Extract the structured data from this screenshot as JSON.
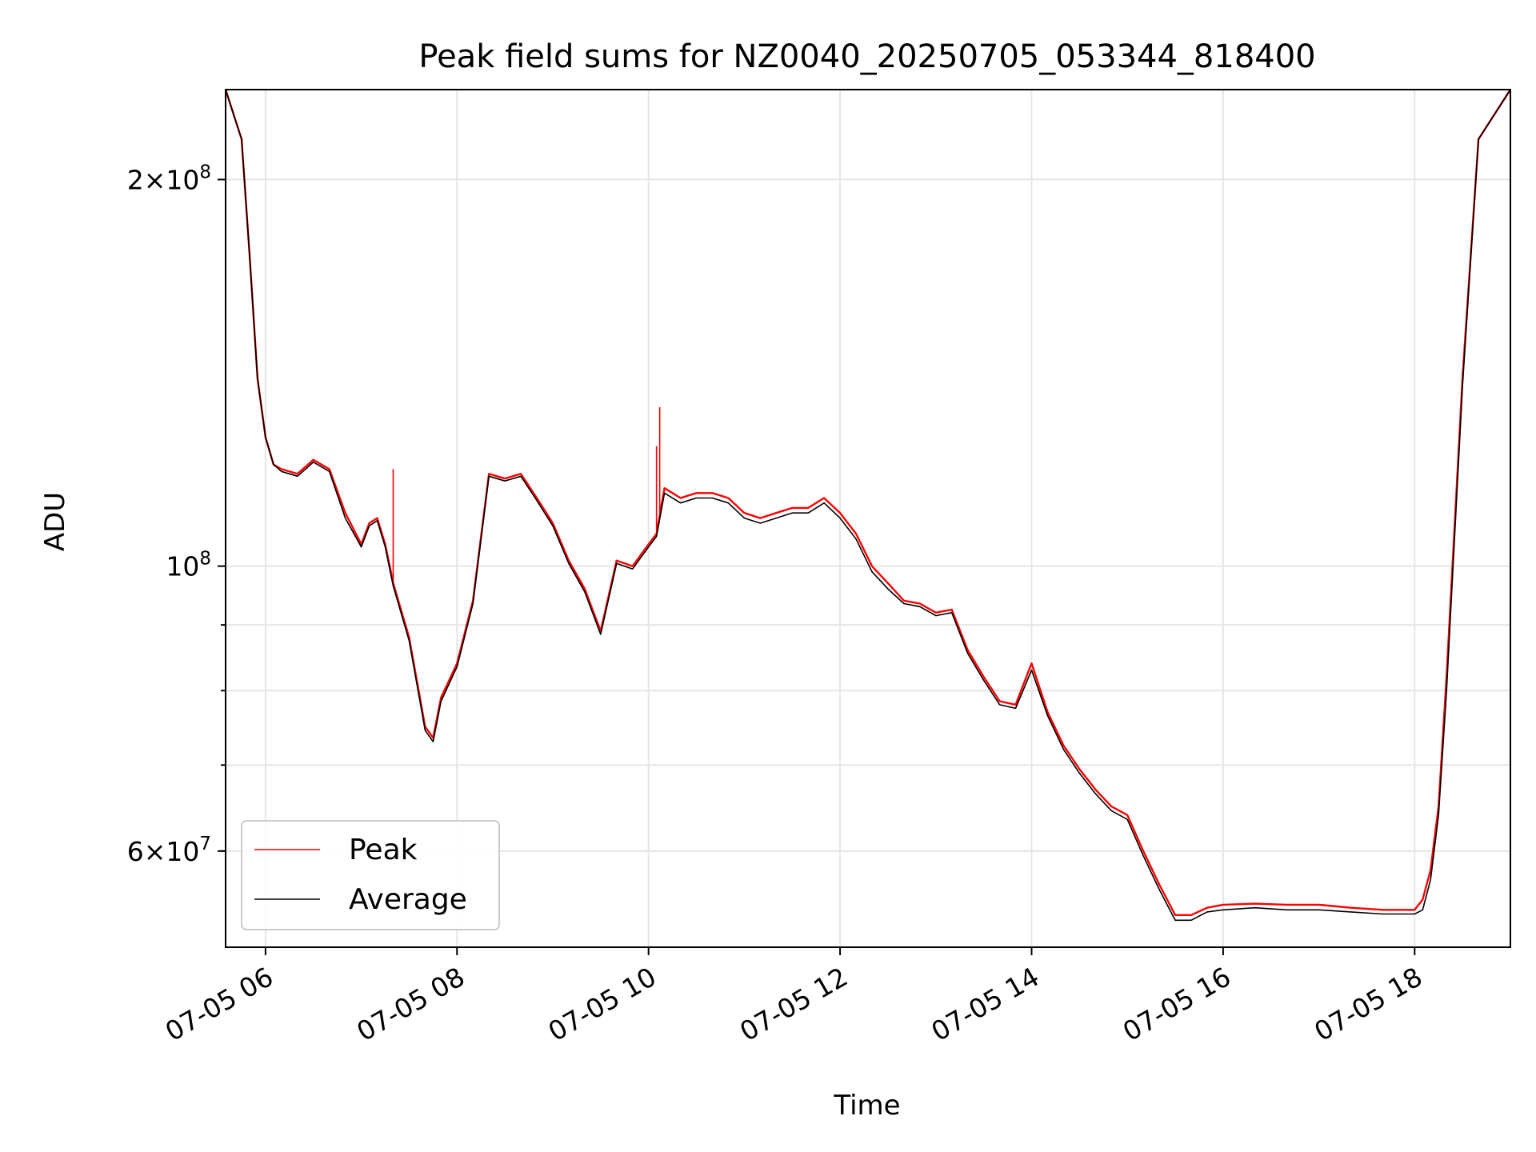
{
  "chart_data": {
    "type": "line",
    "title": "Peak field sums for NZ0040_20250705_053344_818400",
    "xlabel": "Time",
    "ylabel": "ADU",
    "yscale": "log",
    "grid": true,
    "legend_position": "lower-left",
    "xlim": [
      "07-05 05:35",
      "07-05 19:00"
    ],
    "ylim": [
      50500000,
      235000000
    ],
    "x_ticks": [
      {
        "value": "07-05 06:00",
        "label": "07-05 06"
      },
      {
        "value": "07-05 08:00",
        "label": "07-05 08"
      },
      {
        "value": "07-05 10:00",
        "label": "07-05 10"
      },
      {
        "value": "07-05 12:00",
        "label": "07-05 12"
      },
      {
        "value": "07-05 14:00",
        "label": "07-05 14"
      },
      {
        "value": "07-05 16:00",
        "label": "07-05 16"
      },
      {
        "value": "07-05 18:00",
        "label": "07-05 18"
      }
    ],
    "y_major_ticks": [
      {
        "value": 200000000,
        "base": "2×10",
        "exp": "8"
      },
      {
        "value": 100000000,
        "base": "10",
        "exp": "8"
      },
      {
        "value": 60000000,
        "base": "6×10",
        "exp": "7"
      }
    ],
    "y_minor_ticks": [
      60000000,
      70000000,
      80000000,
      90000000,
      300000000
    ],
    "series": [
      {
        "name": "Peak",
        "color": "#ff0000",
        "x": [
          "05:35",
          "05:45",
          "05:50",
          "05:55",
          "06:00",
          "06:05",
          "06:10",
          "06:20",
          "06:30",
          "06:40",
          "06:50",
          "07:00",
          "07:05",
          "07:10",
          "07:15",
          "07:20",
          "07:30",
          "07:40",
          "07:45",
          "07:50",
          "08:00",
          "08:10",
          "08:20",
          "08:30",
          "08:40",
          "08:50",
          "09:00",
          "09:10",
          "09:20",
          "09:30",
          "09:40",
          "09:50",
          "10:00",
          "10:05",
          "10:10",
          "10:20",
          "10:30",
          "10:40",
          "10:50",
          "11:00",
          "11:10",
          "11:20",
          "11:30",
          "11:40",
          "11:50",
          "12:00",
          "12:10",
          "12:20",
          "12:30",
          "12:40",
          "12:50",
          "13:00",
          "13:10",
          "13:20",
          "13:30",
          "13:40",
          "13:50",
          "14:00",
          "14:10",
          "14:20",
          "14:30",
          "14:40",
          "14:50",
          "15:00",
          "15:10",
          "15:20",
          "15:30",
          "15:40",
          "15:50",
          "16:00",
          "16:20",
          "16:40",
          "17:00",
          "17:20",
          "17:40",
          "18:00",
          "18:05",
          "18:10",
          "18:15",
          "18:20",
          "18:30",
          "18:40",
          "19:00"
        ],
        "values": [
          235000000,
          215000000,
          175000000,
          140000000,
          126000000,
          120000000,
          119000000,
          118000000,
          121000000,
          119000000,
          110000000,
          104000000,
          108000000,
          109000000,
          104000000,
          97000000,
          88000000,
          75000000,
          73500000,
          79000000,
          84000000,
          94000000,
          118000000,
          117000000,
          118000000,
          113000000,
          108000000,
          101000000,
          96000000,
          89000000,
          101000000,
          100000000,
          104000000,
          106000000,
          115000000,
          113000000,
          114000000,
          114000000,
          113000000,
          110000000,
          109000000,
          110000000,
          111000000,
          111000000,
          113000000,
          110000000,
          106000000,
          100000000,
          97000000,
          94000000,
          93500000,
          92000000,
          92500000,
          86000000,
          82000000,
          78500000,
          78000000,
          84000000,
          77000000,
          72500000,
          69500000,
          67000000,
          65000000,
          64000000,
          60000000,
          56500000,
          53500000,
          53500000,
          54200000,
          54500000,
          54600000,
          54500000,
          54500000,
          54200000,
          54000000,
          54000000,
          55000000,
          58000000,
          65000000,
          82000000,
          140000000,
          215000000,
          235000000
        ],
        "spikes": [
          {
            "x": "07:20",
            "value": 119000000
          },
          {
            "x": "10:05",
            "value": 124000000
          },
          {
            "x": "10:07",
            "value": 133000000
          },
          {
            "x": "14:55",
            "value": 64500000
          }
        ]
      },
      {
        "name": "Average",
        "color": "#000000",
        "x": [
          "05:35",
          "05:45",
          "05:50",
          "05:55",
          "06:00",
          "06:05",
          "06:10",
          "06:20",
          "06:30",
          "06:40",
          "06:50",
          "07:00",
          "07:05",
          "07:10",
          "07:15",
          "07:20",
          "07:30",
          "07:40",
          "07:45",
          "07:50",
          "08:00",
          "08:10",
          "08:20",
          "08:30",
          "08:40",
          "08:50",
          "09:00",
          "09:10",
          "09:20",
          "09:30",
          "09:40",
          "09:50",
          "10:00",
          "10:05",
          "10:10",
          "10:20",
          "10:30",
          "10:40",
          "10:50",
          "11:00",
          "11:10",
          "11:20",
          "11:30",
          "11:40",
          "11:50",
          "12:00",
          "12:10",
          "12:20",
          "12:30",
          "12:40",
          "12:50",
          "13:00",
          "13:10",
          "13:20",
          "13:30",
          "13:40",
          "13:50",
          "14:00",
          "14:10",
          "14:20",
          "14:30",
          "14:40",
          "14:50",
          "15:00",
          "15:10",
          "15:20",
          "15:30",
          "15:40",
          "15:50",
          "16:00",
          "16:20",
          "16:40",
          "17:00",
          "17:20",
          "17:40",
          "18:00",
          "18:05",
          "18:10",
          "18:15",
          "18:20",
          "18:30",
          "18:40",
          "19:00"
        ],
        "values": [
          235000000,
          215000000,
          175000000,
          140000000,
          126000000,
          120000000,
          118500000,
          117500000,
          120500000,
          118500000,
          109000000,
          103500000,
          107500000,
          108500000,
          103500000,
          96500000,
          87500000,
          74500000,
          73000000,
          78500000,
          83500000,
          93500000,
          117500000,
          116500000,
          117500000,
          112500000,
          107500000,
          100500000,
          95500000,
          88500000,
          100500000,
          99500000,
          103500000,
          105500000,
          114000000,
          112000000,
          113000000,
          113000000,
          112000000,
          109000000,
          108000000,
          109000000,
          110000000,
          110000000,
          112000000,
          109000000,
          105000000,
          99000000,
          96000000,
          93500000,
          93000000,
          91500000,
          92000000,
          85500000,
          81500000,
          78000000,
          77500000,
          83000000,
          76500000,
          72000000,
          69000000,
          66500000,
          64500000,
          63500000,
          59500000,
          56000000,
          53000000,
          53000000,
          53800000,
          54000000,
          54200000,
          54000000,
          54000000,
          53800000,
          53600000,
          53600000,
          54000000,
          57000000,
          64000000,
          80000000,
          138000000,
          215000000,
          235000000
        ]
      }
    ]
  }
}
